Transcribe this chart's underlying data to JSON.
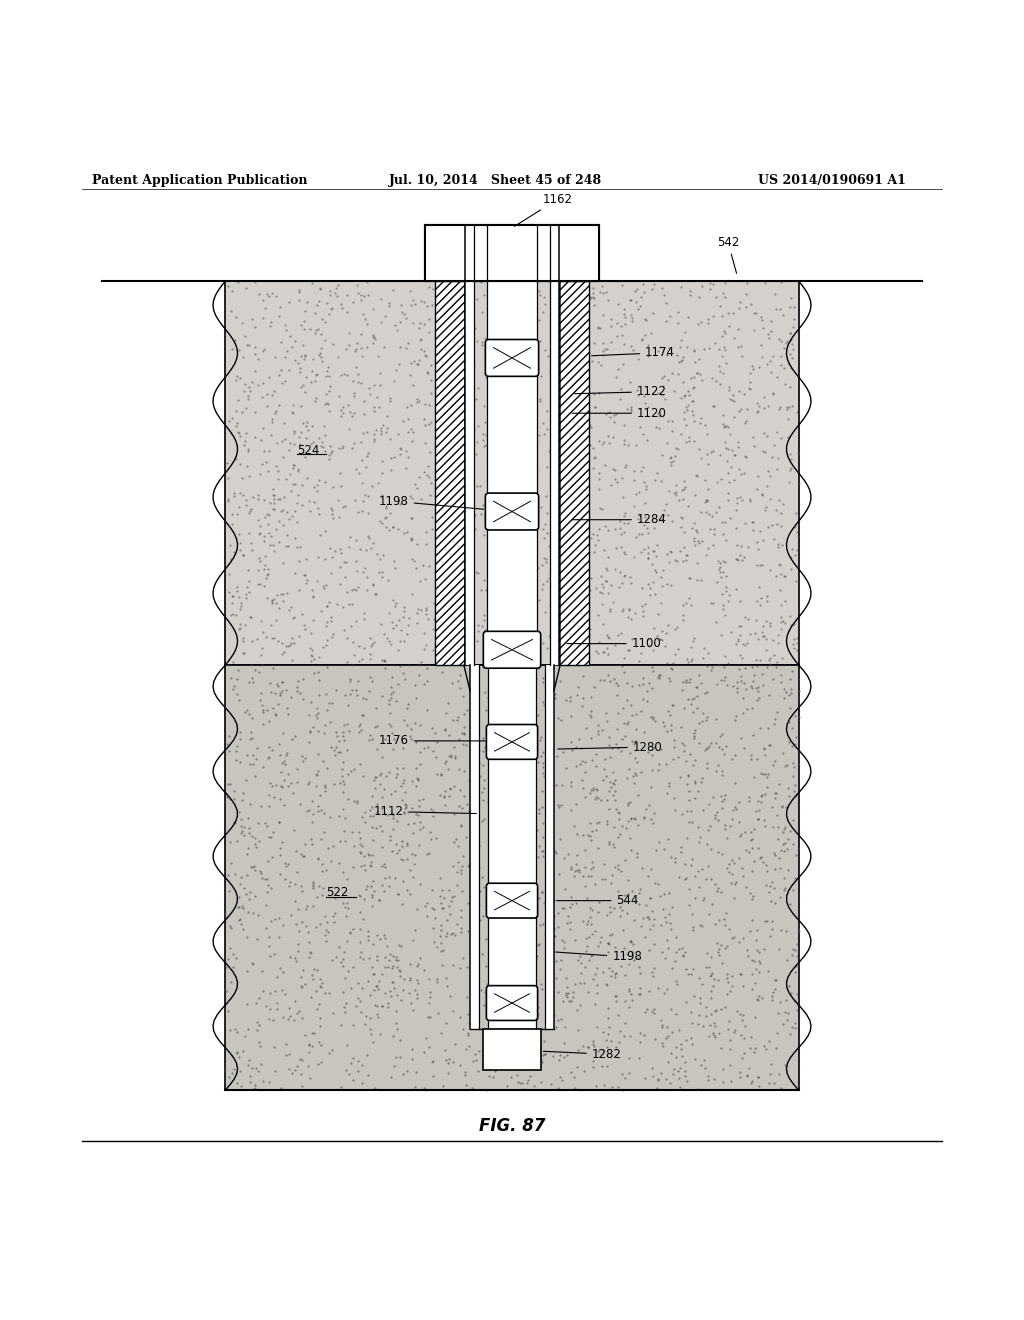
{
  "fig_label": "FIG. 87",
  "header_left": "Patent Application Publication",
  "header_mid": "Jul. 10, 2014   Sheet 45 of 248",
  "header_right": "US 2014/0190691 A1",
  "bg_color": "#ffffff",
  "upper_earth_color": "#d4d0cb",
  "lower_earth_color": "#c8c5be",
  "fontsize": 8.5,
  "fig_label_fontsize": 12,
  "header_fontsize": 9
}
